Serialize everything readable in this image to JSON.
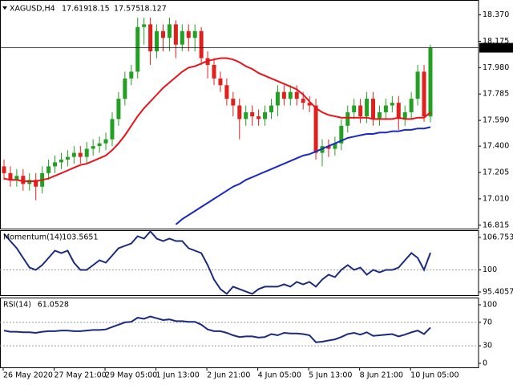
{
  "chart_data": [
    {
      "type": "candlestick",
      "title": "XAGUSD,H4",
      "categories": [
        "26 May 2020",
        null,
        null,
        null,
        null,
        null,
        null,
        null,
        "27 May 21:00",
        null,
        null,
        null,
        null,
        null,
        null,
        null,
        "29 May 05:00",
        null,
        null,
        null,
        null,
        null,
        null,
        null,
        "1 Jun 13:00",
        null,
        null,
        null,
        null,
        null,
        null,
        null,
        "2 Jun 21:00",
        null,
        null,
        null,
        null,
        null,
        null,
        null,
        "4 Jun 05:00",
        null,
        null,
        null,
        null,
        null,
        null,
        null,
        "5 Jun 13:00",
        null,
        null,
        null,
        null,
        null,
        null,
        null,
        "8 Jun 21:00",
        null,
        null,
        null,
        null,
        null,
        null,
        null,
        "10 Jun 05:00",
        null,
        null,
        null
      ],
      "open": [
        17.25,
        17.2,
        17.15,
        17.18,
        17.12,
        17.15,
        17.1,
        17.2,
        17.25,
        17.28,
        17.3,
        17.32,
        17.35,
        17.32,
        17.38,
        17.4,
        17.42,
        17.45,
        17.6,
        17.75,
        17.9,
        17.95,
        18.28,
        18.3,
        18.1,
        18.25,
        18.2,
        18.3,
        18.15,
        18.25,
        18.2,
        18.25,
        18.05,
        18.0,
        17.9,
        17.85,
        17.75,
        17.7,
        17.6,
        17.65,
        17.62,
        17.6,
        17.65,
        17.7,
        17.8,
        17.75,
        17.8,
        17.75,
        17.72,
        17.7,
        17.35,
        17.4,
        17.38,
        17.42,
        17.55,
        17.65,
        17.7,
        17.62,
        17.75,
        17.6,
        17.65,
        17.7,
        17.72,
        17.6,
        17.65,
        17.75,
        17.95,
        17.619
      ],
      "high": [
        17.3,
        17.25,
        17.23,
        17.23,
        17.2,
        17.2,
        17.25,
        17.3,
        17.33,
        17.35,
        17.37,
        17.4,
        17.4,
        17.43,
        17.45,
        17.47,
        17.5,
        17.65,
        17.8,
        17.95,
        18.0,
        18.35,
        18.35,
        18.35,
        18.3,
        18.3,
        18.35,
        18.33,
        18.3,
        18.3,
        18.3,
        18.28,
        18.1,
        18.05,
        17.95,
        17.9,
        17.8,
        17.75,
        17.7,
        17.7,
        17.67,
        17.7,
        17.75,
        17.85,
        17.85,
        17.85,
        17.85,
        17.8,
        17.77,
        17.75,
        17.45,
        17.45,
        17.47,
        17.6,
        17.7,
        17.75,
        17.75,
        17.8,
        17.8,
        17.7,
        17.75,
        17.77,
        17.77,
        17.7,
        17.8,
        18.0,
        18.0,
        18.15
      ],
      "low": [
        17.15,
        17.1,
        17.1,
        17.07,
        17.07,
        17.0,
        17.05,
        17.15,
        17.2,
        17.23,
        17.25,
        17.27,
        17.27,
        17.27,
        17.33,
        17.35,
        17.37,
        17.4,
        17.55,
        17.7,
        17.85,
        17.9,
        18.15,
        18.0,
        18.05,
        18.1,
        18.1,
        18.05,
        18.1,
        18.1,
        18.1,
        18.0,
        17.9,
        17.85,
        17.8,
        17.7,
        17.62,
        17.45,
        17.55,
        17.55,
        17.55,
        17.55,
        17.6,
        17.62,
        17.7,
        17.7,
        17.7,
        17.67,
        17.65,
        17.3,
        17.25,
        17.32,
        17.33,
        17.37,
        17.5,
        17.6,
        17.57,
        17.57,
        17.55,
        17.55,
        17.6,
        17.65,
        17.52,
        17.55,
        17.6,
        17.7,
        17.58,
        17.575
      ],
      "close": [
        17.2,
        17.15,
        17.18,
        17.12,
        17.15,
        17.1,
        17.2,
        17.25,
        17.28,
        17.3,
        17.32,
        17.35,
        17.32,
        17.38,
        17.4,
        17.42,
        17.45,
        17.6,
        17.75,
        17.9,
        17.95,
        18.28,
        18.3,
        18.1,
        18.25,
        18.2,
        18.3,
        18.15,
        18.25,
        18.2,
        18.25,
        18.05,
        18.0,
        17.9,
        17.85,
        17.75,
        17.7,
        17.6,
        17.65,
        17.62,
        17.6,
        17.65,
        17.7,
        17.8,
        17.75,
        17.8,
        17.75,
        17.72,
        17.7,
        17.35,
        17.4,
        17.38,
        17.42,
        17.55,
        17.65,
        17.7,
        17.62,
        17.75,
        17.6,
        17.65,
        17.7,
        17.72,
        17.6,
        17.65,
        17.75,
        17.95,
        17.619,
        18.127
      ],
      "up_color": "#22a022",
      "down_color": "#e0201a",
      "series": [
        {
          "color": "#e8141a",
          "values": [
            17.16,
            17.15,
            17.15,
            17.14,
            17.14,
            17.14,
            17.15,
            17.16,
            17.18,
            17.2,
            17.22,
            17.24,
            17.26,
            17.27,
            17.29,
            17.31,
            17.33,
            17.37,
            17.42,
            17.48,
            17.55,
            17.62,
            17.68,
            17.73,
            17.78,
            17.83,
            17.87,
            17.91,
            17.95,
            17.98,
            17.99,
            18.01,
            18.03,
            18.04,
            18.05,
            18.05,
            18.04,
            18.02,
            17.99,
            17.97,
            17.94,
            17.92,
            17.9,
            17.88,
            17.86,
            17.84,
            17.82,
            17.78,
            17.73,
            17.68,
            17.65,
            17.63,
            17.62,
            17.61,
            17.61,
            17.61,
            17.61,
            17.61,
            17.6,
            17.6,
            17.6,
            17.6,
            17.61,
            17.6,
            17.6,
            17.61,
            17.61,
            17.65
          ]
        },
        {
          "color": "#1a28c8",
          "values": [
            null,
            null,
            null,
            null,
            null,
            null,
            null,
            null,
            null,
            null,
            null,
            null,
            null,
            null,
            null,
            null,
            null,
            null,
            null,
            null,
            null,
            null,
            null,
            null,
            null,
            null,
            null,
            16.82,
            16.86,
            16.89,
            16.92,
            16.95,
            16.98,
            17.01,
            17.04,
            17.07,
            17.1,
            17.12,
            17.15,
            17.17,
            17.19,
            17.21,
            17.23,
            17.25,
            17.27,
            17.29,
            17.31,
            17.33,
            17.34,
            17.36,
            17.38,
            17.4,
            17.42,
            17.44,
            17.46,
            17.47,
            17.48,
            17.49,
            17.49,
            17.5,
            17.5,
            17.51,
            17.51,
            17.52,
            17.52,
            17.53,
            17.53,
            17.54
          ]
        }
      ],
      "ylim": [
        16.79,
        18.48
      ],
      "yticks": [
        {
          "value": 18.37,
          "label": "18.370"
        },
        18.175,
        {
          "value": 17.98,
          "label": "17.980"
        },
        17.785,
        {
          "value": 17.59,
          "label": "17.590"
        },
        {
          "value": 17.4,
          "label": "17.400"
        },
        17.205,
        {
          "value": 17.01,
          "label": "17.010"
        },
        16.815
      ]
    },
    {
      "type": "line",
      "title": "Momentum(14)",
      "color": "#1a2a80",
      "values": [
        107.5,
        106,
        104.5,
        102.5,
        100.5,
        100,
        101,
        102.5,
        104,
        103.5,
        104,
        101.5,
        100,
        100,
        101,
        102,
        101.5,
        103,
        104.5,
        105,
        105.5,
        107,
        106.5,
        108,
        106.5,
        106,
        106.5,
        106,
        106,
        104.5,
        104,
        103.5,
        101,
        98,
        96,
        95,
        96.5,
        96,
        95.5,
        95,
        96,
        96.5,
        96.5,
        96.5,
        97,
        96.5,
        97.5,
        97,
        97.5,
        96.5,
        98,
        99,
        98.5,
        100,
        101,
        100,
        100.5,
        99,
        100,
        99.5,
        100,
        100,
        100.5,
        102,
        103.5,
        102.5,
        100,
        103.5651
      ],
      "ylim": [
        94.74,
        108.25
      ],
      "yticks": [
        106.7531,
        100,
        95.4057
      ],
      "levels": [
        100
      ]
    },
    {
      "type": "line",
      "title": "RSI(14)",
      "color": "#1a2a80",
      "values": [
        56,
        54,
        54,
        53,
        53,
        52,
        54,
        55,
        55,
        56,
        56,
        55,
        55,
        56,
        57,
        57,
        58,
        62,
        66,
        70,
        71,
        78,
        76,
        80,
        77,
        74,
        75,
        72,
        72,
        71,
        71,
        66,
        58,
        55,
        55,
        52,
        48,
        45,
        46,
        46,
        44,
        45,
        50,
        48,
        52,
        51,
        51,
        50,
        48,
        36,
        37,
        39,
        41,
        45,
        50,
        52,
        49,
        53,
        47,
        48,
        49,
        50,
        46,
        49,
        53,
        56,
        50,
        61.0528
      ],
      "ylim": [
        -6.8,
        112.3
      ],
      "yticks": [
        100,
        70,
        30,
        0
      ],
      "levels": [
        70,
        30
      ]
    }
  ]
}
